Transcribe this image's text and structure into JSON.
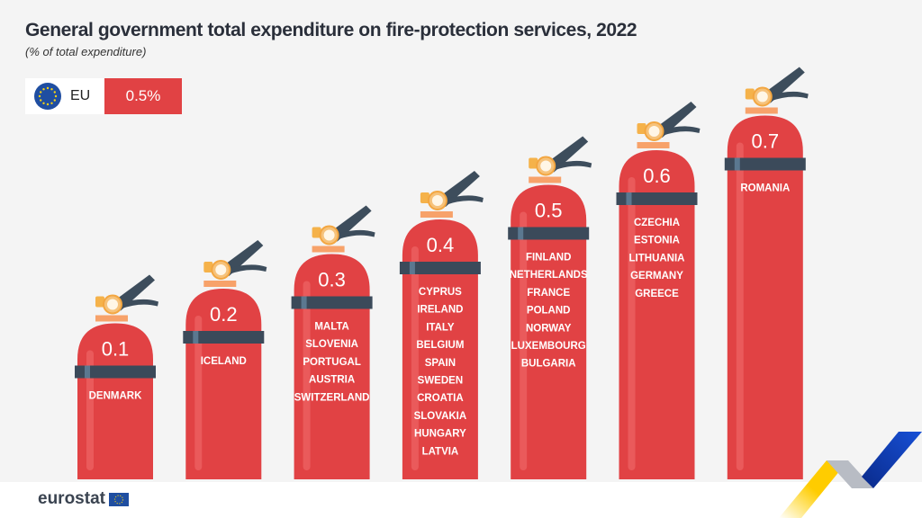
{
  "chart_data": {
    "type": "bar",
    "title": "General government total expenditure on fire-protection services, 2022",
    "subtitle": "(% of total expenditure)",
    "reference": {
      "label": "EU",
      "value_label": "0.5%",
      "value": 0.5
    },
    "categories": [
      "0.1",
      "0.2",
      "0.3",
      "0.4",
      "0.5",
      "0.6",
      "0.7"
    ],
    "values": [
      0.1,
      0.2,
      0.3,
      0.4,
      0.5,
      0.6,
      0.7
    ],
    "groups": [
      [
        "DENMARK"
      ],
      [
        "ICELAND"
      ],
      [
        "MALTA",
        "SLOVENIA",
        "PORTUGAL",
        "AUSTRIA",
        "SWITZERLAND"
      ],
      [
        "CYPRUS",
        "IRELAND",
        "ITALY",
        "BELGIUM",
        "SPAIN",
        "SWEDEN",
        "CROATIA",
        "SLOVAKIA",
        "HUNGARY",
        "LATVIA"
      ],
      [
        "FINLAND",
        "NETHERLANDS",
        "FRANCE",
        "POLAND",
        "NORWAY",
        "LUXEMBOURG",
        "BULGARIA"
      ],
      [
        "CZECHIA",
        "ESTONIA",
        "LITHUANIA",
        "GERMANY",
        "GREECE"
      ],
      [
        "ROMANIA"
      ]
    ],
    "colors": {
      "body": "#e14244",
      "band": "#3b4a5a",
      "handle": "#3d4d5c",
      "gauge": "#f6c27a",
      "accent": "#e14244"
    }
  },
  "footer": {
    "logo": "eurostat"
  }
}
